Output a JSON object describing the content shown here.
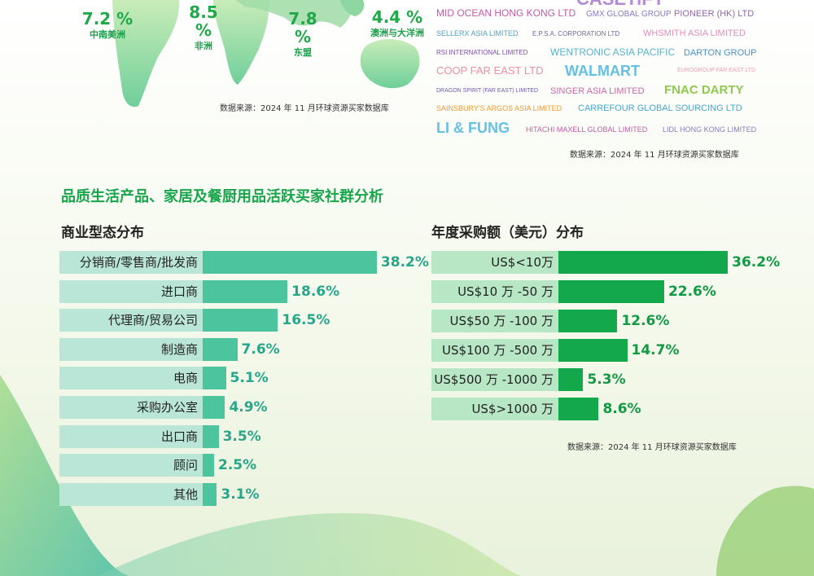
{
  "colors": {
    "business_track": "#b9e6d6",
    "business_fill": "#4cc49e",
    "business_value": "#27a68a",
    "purchase_track": "#b8e7c6",
    "purchase_fill": "#14a84d",
    "purchase_value": "#129944",
    "section_title": "#18a54c",
    "map_green": "#8ed6a2"
  },
  "map": {
    "labels": [
      {
        "pct": "7.2 %",
        "region": "中南美洲"
      },
      {
        "pct": "8.5 %",
        "region": "非洲"
      },
      {
        "pct": "7.8 %",
        "region": "东盟"
      },
      {
        "pct": "4.4 %",
        "region": "澳洲与大洋洲"
      }
    ],
    "source": "数据来源：2024 年 11 月环球资源买家数据库"
  },
  "buyers": {
    "names": [
      "CASETiFY",
      "MID OCEAN HONG KONG LTD",
      "GMX GLOBAL GROUP",
      "PIONEER (HK) LTD",
      "SELLERX ASIA LIMITED",
      "E.P.S.A. CORPORATION LTD",
      "WHSMITH ASIA LIMITED",
      "RSI INTERNATIONAL LIMITED",
      "WENTRONIC ASIA PACIFIC",
      "DARTON GROUP",
      "COOP FAR EAST LTD",
      "WALMART",
      "EUROGROUP FAR EAST LTD",
      "DRAGON SPIRIT (FAR EAST) LIMITED",
      "SINGER ASIA LIMITED",
      "FNAC DARTY",
      "SAINSBURY'S ARGOS ASIA LIMITED",
      "CARREFOUR GLOBAL SOURCING LTD",
      "LI & FUNG",
      "HITACHI MAXELL GLOBAL LIMITED",
      "LIDL HONG KONG LIMITED"
    ],
    "source": "数据来源：2024 年 11 月环球资源买家数据库"
  },
  "section_title": "品质生活产品、家居及餐厨用品活跃买家社群分析",
  "chart_data": [
    {
      "type": "bar",
      "orientation": "horizontal",
      "title": "商业型态分布",
      "categories": [
        "分销商/零售商/批发商",
        "进口商",
        "代理商/贸易公司",
        "制造商",
        "电商",
        "采购办公室",
        "出口商",
        "顾问",
        "其他"
      ],
      "values": [
        38.2,
        18.6,
        16.5,
        7.6,
        5.1,
        4.9,
        3.5,
        2.5,
        3.1
      ],
      "value_labels": [
        "38.2%",
        "18.6%",
        "16.5%",
        "7.6%",
        "5.1%",
        "4.9%",
        "3.5%",
        "2.5%",
        "3.1%"
      ],
      "unit": "%"
    },
    {
      "type": "bar",
      "orientation": "horizontal",
      "title": "年度采购额（美元）分布",
      "categories": [
        "US$<10万",
        "US$10 万 -50 万",
        "US$50 万 -100 万",
        "US$100 万 -500 万",
        "US$500 万 -1000 万",
        "US$>1000 万"
      ],
      "values": [
        36.2,
        22.6,
        12.6,
        14.7,
        5.3,
        8.6
      ],
      "value_labels": [
        "36.2%",
        "22.6%",
        "12.6%",
        "14.7%",
        "5.3%",
        "8.6%"
      ],
      "unit": "%",
      "source": "数据来源：2024 年 11 月环球资源买家数据库"
    }
  ]
}
